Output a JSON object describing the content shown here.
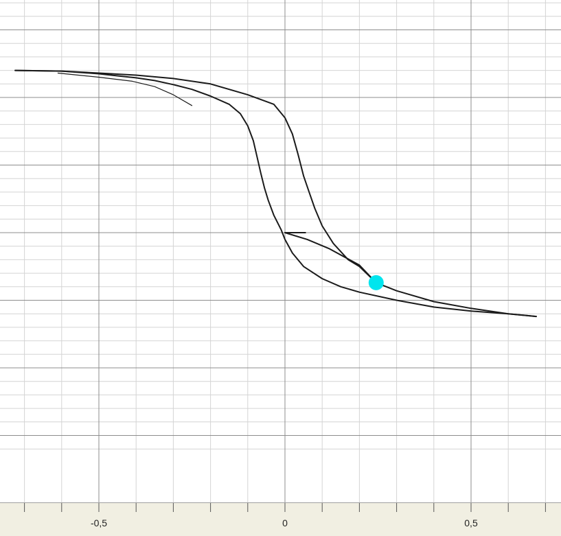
{
  "chart_data": {
    "type": "line",
    "title": "",
    "xlabel": "",
    "ylabel": "",
    "xlim": [
      -0.77,
      0.74
    ],
    "ylim": [
      -1.6,
      1.97
    ],
    "grid": true,
    "x_ticks": [
      {
        "value": -0.5,
        "label": "-0,5"
      },
      {
        "value": 0,
        "label": "0"
      },
      {
        "value": 0.5,
        "label": "0,5"
      }
    ],
    "series": [
      {
        "values": [
          [
            -0.725,
            1.2
          ],
          [
            -0.6,
            1.195
          ],
          [
            -0.5,
            1.175
          ],
          [
            -0.45,
            1.16
          ],
          [
            -0.4,
            1.145
          ],
          [
            -0.35,
            1.125
          ],
          [
            -0.3,
            1.095
          ],
          [
            -0.25,
            1.06
          ],
          [
            -0.2,
            1.01
          ],
          [
            -0.15,
            0.95
          ],
          [
            -0.12,
            0.88
          ],
          [
            -0.1,
            0.79
          ],
          [
            -0.085,
            0.68
          ],
          [
            -0.075,
            0.56
          ],
          [
            -0.065,
            0.44
          ],
          [
            -0.055,
            0.33
          ],
          [
            -0.045,
            0.24
          ],
          [
            -0.03,
            0.13
          ],
          [
            -0.01,
            0.02
          ],
          [
            0.0,
            -0.05
          ],
          [
            0.02,
            -0.15
          ],
          [
            0.05,
            -0.25
          ],
          [
            0.1,
            -0.34
          ],
          [
            0.15,
            -0.4
          ],
          [
            0.2,
            -0.44
          ],
          [
            0.3,
            -0.5
          ],
          [
            0.4,
            -0.55
          ],
          [
            0.5,
            -0.58
          ],
          [
            0.6,
            -0.6
          ],
          [
            0.675,
            -0.62
          ]
        ]
      },
      {
        "values": [
          [
            -0.725,
            1.2
          ],
          [
            -0.6,
            1.195
          ],
          [
            -0.5,
            1.18
          ],
          [
            -0.4,
            1.165
          ],
          [
            -0.3,
            1.14
          ],
          [
            -0.2,
            1.1
          ],
          [
            -0.1,
            1.02
          ],
          [
            -0.03,
            0.95
          ],
          [
            0.0,
            0.85
          ],
          [
            0.02,
            0.73
          ],
          [
            0.035,
            0.58
          ],
          [
            0.05,
            0.42
          ],
          [
            0.065,
            0.3
          ],
          [
            0.08,
            0.18
          ],
          [
            0.1,
            0.05
          ],
          [
            0.13,
            -0.08
          ],
          [
            0.17,
            -0.2
          ],
          [
            0.2,
            -0.25
          ],
          [
            0.245,
            -0.37
          ],
          [
            0.3,
            -0.43
          ],
          [
            0.4,
            -0.51
          ],
          [
            0.5,
            -0.56
          ],
          [
            0.6,
            -0.6
          ],
          [
            0.675,
            -0.62
          ]
        ]
      },
      {
        "values": [
          [
            0.0,
            0.0
          ],
          [
            0.055,
            0.0
          ]
        ]
      },
      {
        "values": [
          [
            0.0,
            0.0
          ],
          [
            0.06,
            -0.05
          ],
          [
            0.12,
            -0.12
          ],
          [
            0.18,
            -0.21
          ],
          [
            0.2,
            -0.24
          ],
          [
            0.245,
            -0.37
          ]
        ]
      },
      {
        "values": [
          [
            -0.61,
            1.18
          ],
          [
            -0.5,
            1.15
          ],
          [
            -0.41,
            1.12
          ],
          [
            -0.35,
            1.08
          ],
          [
            -0.3,
            1.02
          ],
          [
            -0.25,
            0.94
          ]
        ]
      }
    ],
    "annotations": [
      {
        "type": "marker",
        "shape": "circle",
        "x": 0.245,
        "y": -0.37,
        "color": "#00e5ee"
      }
    ]
  },
  "colors": {
    "plot_background": "#ffffff",
    "axis_bar_background": "#f1efe2",
    "major_grid": "#8c8c8c",
    "minor_grid": "#d4d4d4",
    "curve": "#1a1a1a",
    "marker": "#00e5ee"
  }
}
